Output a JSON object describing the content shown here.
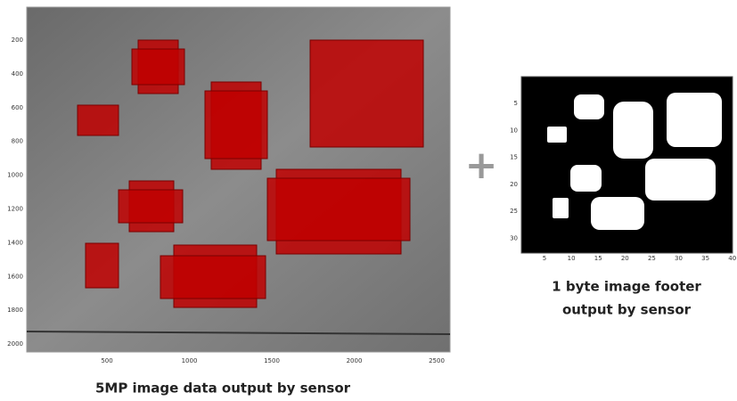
{
  "image_panel": {
    "xticks": [
      "500",
      "1000",
      "1500",
      "2000",
      "2500"
    ],
    "yticks": [
      "200",
      "400",
      "600",
      "800",
      "1000",
      "1200",
      "1400",
      "1600",
      "1800",
      "2000"
    ],
    "caption": "5MP image data  output by sensor"
  },
  "footer_panel": {
    "xticks": [
      "5",
      "10",
      "15",
      "20",
      "25",
      "30",
      "35",
      "40"
    ],
    "yticks": [
      "5",
      "10",
      "15",
      "20",
      "25",
      "30"
    ],
    "caption_line1": "1 byte image footer",
    "caption_line2": "output by sensor"
  }
}
